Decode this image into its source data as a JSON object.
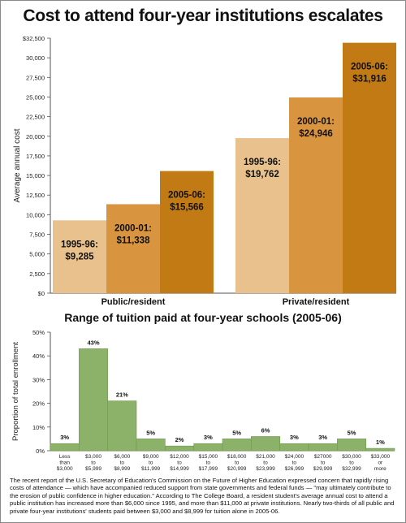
{
  "title": "Cost to attend four-year institutions escalates",
  "subtitle": "Range of tuition paid at four-year schools (2005-06)",
  "caption": "The recent report of the U.S. Secretary of Education's Commission on the Future of Higher Education expressed concern that  rapidly rising costs of attendance — which have accompanied reduced support from state governments and federal funds — \"may ultimately contribute to the erosion of public confidence in higher education.\" According to The College Board, a resident student's average annual cost to attend a public institution has increased more than $6,000 since 1995, and more than $11,000 at private institutions. Nearly two-thirds of all public and private four-year institutions' students paid between $3,000 and $8,999 for tuition alone in 2005-06.",
  "colors": {
    "bar_1995": "#E8C18C",
    "bar_2000": "#D9943F",
    "bar_2005": "#C27A14",
    "hist_bar": "#8BB268",
    "hist_edge": "#6E9A4E",
    "axis": "#555555"
  },
  "chart_data": [
    {
      "type": "bar",
      "title": "Cost to attend four-year institutions escalates",
      "ylabel": "Average annual cost",
      "ylim": [
        0,
        32500
      ],
      "yticks": [
        "$0",
        "2,500",
        "5,000",
        "7,500",
        "10,000",
        "12,500",
        "15,000",
        "17,500",
        "20,000",
        "22,500",
        "25,000",
        "27,500",
        "30,000",
        "$32,500"
      ],
      "categories": [
        "Public/resident",
        "Private/resident"
      ],
      "series": [
        {
          "name": "1995-96:",
          "values": [
            9285,
            19762
          ],
          "labels": [
            "$9,285",
            "$19,762"
          ]
        },
        {
          "name": "2000-01:",
          "values": [
            11338,
            24946
          ],
          "labels": [
            "$11,338",
            "$24,946"
          ]
        },
        {
          "name": "2005-06:",
          "values": [
            15566,
            31916
          ],
          "labels": [
            "$15,566",
            "$31,916"
          ]
        }
      ]
    },
    {
      "type": "bar",
      "title": "Range of tuition paid at four-year schools (2005-06)",
      "ylabel": "Proportion of total enrollment",
      "ylim": [
        0,
        50
      ],
      "yticks": [
        "0%",
        "10%",
        "20%",
        "30%",
        "40%",
        "50%"
      ],
      "categories": [
        [
          "Less",
          "than",
          "$3,000"
        ],
        [
          "$3,000",
          "to",
          "$5,999"
        ],
        [
          "$6,000",
          "to",
          "$8,999"
        ],
        [
          "$9,000",
          "to",
          "$11,999"
        ],
        [
          "$12,000",
          "to",
          "$14,999"
        ],
        [
          "$15,000",
          "to",
          "$17,999"
        ],
        [
          "$18,000",
          "to",
          "$20,999"
        ],
        [
          "$21,000",
          "to",
          "$23,999"
        ],
        [
          "$24,000",
          "to",
          "$26,999"
        ],
        [
          "$27000",
          "to",
          "$29,999"
        ],
        [
          "$30,000",
          "to",
          "$32,999"
        ],
        [
          "$33,000",
          "or",
          "more"
        ]
      ],
      "values": [
        3,
        43,
        21,
        5,
        2,
        3,
        5,
        6,
        3,
        3,
        5,
        1
      ],
      "labels": [
        "3%",
        "43%",
        "21%",
        "5%",
        "2%",
        "3%",
        "5%",
        "6%",
        "3%",
        "3%",
        "5%",
        "1%"
      ]
    }
  ]
}
